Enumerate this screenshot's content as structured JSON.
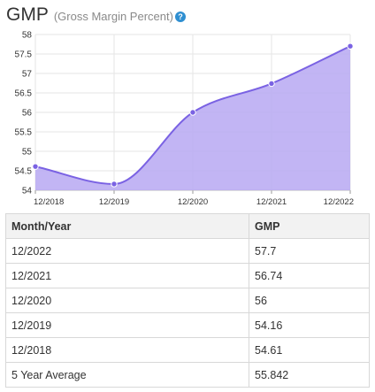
{
  "header": {
    "title": "GMP",
    "subtitle": "(Gross Margin Percent)",
    "help_icon": "question-circle-icon",
    "help_symbol": "?"
  },
  "colors": {
    "area_fill": "#b7a8f2",
    "line": "#7a62e3",
    "grid": "#e6e6e6",
    "help_icon": "#2f8fd1",
    "header_row": "#f2f2f2"
  },
  "chart_data": {
    "type": "area",
    "categories": [
      "12/2018",
      "12/2019",
      "12/2020",
      "12/2021",
      "12/2022"
    ],
    "values": [
      54.61,
      54.16,
      56,
      56.74,
      57.7
    ],
    "ylim": [
      54,
      58
    ],
    "yticks": [
      "54",
      "54.5",
      "55",
      "55.5",
      "56",
      "56.5",
      "57",
      "57.5",
      "58"
    ],
    "grid": true,
    "smooth": true,
    "markers": true
  },
  "table": {
    "headers": [
      "Month/Year",
      "GMP"
    ],
    "rows": [
      [
        "12/2022",
        "57.7"
      ],
      [
        "12/2021",
        "56.74"
      ],
      [
        "12/2020",
        "56"
      ],
      [
        "12/2019",
        "54.16"
      ],
      [
        "12/2018",
        "54.61"
      ],
      [
        "5 Year Average",
        "55.842"
      ]
    ]
  }
}
